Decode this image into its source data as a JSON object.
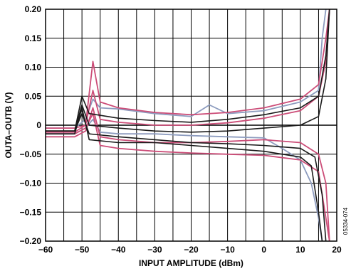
{
  "chart_data": {
    "type": "line",
    "xlabel": "INPUT AMPLITUDE (dBm)",
    "ylabel": "OUTA–OUTB (V)",
    "xlim": [
      -60,
      20
    ],
    "ylim": [
      -0.2,
      0.2
    ],
    "x_ticks": [
      "−60",
      "−50",
      "−40",
      "−30",
      "−20",
      "−10",
      "0",
      "10",
      "20"
    ],
    "y_ticks": [
      "0.20",
      "0.15",
      "0.10",
      "0.05",
      "0",
      "−0.05",
      "−0.10",
      "−0.15",
      "−0.20"
    ],
    "grid": true,
    "figure_id": "05334-074",
    "colors": {
      "black": "#1a1a1a",
      "pink": "#cc4d78",
      "blue": "#8d9cbf"
    },
    "series": [
      {
        "color": "black",
        "points": [
          [
            -60,
            -0.01
          ],
          [
            -52,
            -0.01
          ],
          [
            -50,
            0.05
          ],
          [
            -48,
            0.02
          ],
          [
            -40,
            0.012
          ],
          [
            -30,
            0.008
          ],
          [
            -20,
            0.005
          ],
          [
            -10,
            0.01
          ],
          [
            0,
            0.018
          ],
          [
            10,
            0.03
          ],
          [
            15,
            0.05
          ],
          [
            17,
            0.12
          ],
          [
            18,
            0.2
          ]
        ]
      },
      {
        "color": "black",
        "points": [
          [
            -60,
            -0.01
          ],
          [
            -52,
            -0.01
          ],
          [
            -50,
            0.035
          ],
          [
            -48,
            0.0
          ],
          [
            -40,
            -0.005
          ],
          [
            -30,
            -0.01
          ],
          [
            -20,
            -0.012
          ],
          [
            -10,
            -0.01
          ],
          [
            0,
            -0.005
          ],
          [
            10,
            0.0
          ],
          [
            15,
            0.015
          ],
          [
            17,
            0.08
          ],
          [
            18,
            0.2
          ]
        ]
      },
      {
        "color": "black",
        "points": [
          [
            -60,
            -0.01
          ],
          [
            -52,
            -0.01
          ],
          [
            -50,
            0.02
          ],
          [
            -48,
            -0.015
          ],
          [
            -40,
            -0.02
          ],
          [
            -30,
            -0.025
          ],
          [
            -20,
            -0.03
          ],
          [
            -10,
            -0.032
          ],
          [
            0,
            -0.035
          ],
          [
            10,
            -0.04
          ],
          [
            14,
            -0.055
          ],
          [
            16,
            -0.12
          ],
          [
            17,
            -0.2
          ]
        ]
      },
      {
        "color": "black",
        "points": [
          [
            -60,
            -0.015
          ],
          [
            -52,
            -0.015
          ],
          [
            -50,
            0.03
          ],
          [
            -48,
            -0.025
          ],
          [
            -40,
            -0.03
          ],
          [
            -30,
            -0.03
          ],
          [
            -20,
            -0.035
          ],
          [
            -10,
            -0.04
          ],
          [
            0,
            -0.045
          ],
          [
            10,
            -0.055
          ],
          [
            13,
            -0.07
          ],
          [
            15,
            -0.15
          ],
          [
            16,
            -0.2
          ]
        ]
      },
      {
        "color": "pink",
        "points": [
          [
            -60,
            -0.005
          ],
          [
            -52,
            -0.005
          ],
          [
            -49,
            0.0
          ],
          [
            -47,
            0.11
          ],
          [
            -45,
            0.04
          ],
          [
            -40,
            0.03
          ],
          [
            -30,
            0.022
          ],
          [
            -20,
            0.018
          ],
          [
            -10,
            0.022
          ],
          [
            0,
            0.03
          ],
          [
            10,
            0.045
          ],
          [
            15,
            0.07
          ],
          [
            17,
            0.15
          ],
          [
            18,
            0.2
          ]
        ]
      },
      {
        "color": "pink",
        "points": [
          [
            -60,
            -0.012
          ],
          [
            -52,
            -0.012
          ],
          [
            -49,
            0.0
          ],
          [
            -47,
            0.06
          ],
          [
            -45,
            0.01
          ],
          [
            -40,
            0.005
          ],
          [
            -30,
            0.0
          ],
          [
            -20,
            0.0
          ],
          [
            -10,
            0.004
          ],
          [
            0,
            0.012
          ],
          [
            10,
            0.025
          ],
          [
            15,
            0.05
          ],
          [
            17,
            0.11
          ],
          [
            18,
            0.2
          ]
        ]
      },
      {
        "color": "pink",
        "points": [
          [
            -60,
            -0.02
          ],
          [
            -52,
            -0.02
          ],
          [
            -49,
            -0.01
          ],
          [
            -47,
            0.03
          ],
          [
            -45,
            -0.02
          ],
          [
            -40,
            -0.025
          ],
          [
            -30,
            -0.03
          ],
          [
            -20,
            -0.03
          ],
          [
            -10,
            -0.028
          ],
          [
            0,
            -0.025
          ],
          [
            10,
            -0.03
          ],
          [
            15,
            -0.05
          ],
          [
            17,
            -0.1
          ],
          [
            18,
            -0.2
          ]
        ]
      },
      {
        "color": "pink",
        "points": [
          [
            -60,
            -0.015
          ],
          [
            -52,
            -0.015
          ],
          [
            -49,
            -0.005
          ],
          [
            -47,
            0.02
          ],
          [
            -45,
            -0.035
          ],
          [
            -40,
            -0.04
          ],
          [
            -30,
            -0.045
          ],
          [
            -20,
            -0.048
          ],
          [
            -10,
            -0.05
          ],
          [
            0,
            -0.052
          ],
          [
            10,
            -0.06
          ],
          [
            15,
            -0.08
          ],
          [
            17,
            -0.16
          ],
          [
            18,
            -0.2
          ]
        ]
      },
      {
        "color": "blue",
        "points": [
          [
            -60,
            -0.005
          ],
          [
            -52,
            -0.005
          ],
          [
            -49,
            0.01
          ],
          [
            -47,
            0.045
          ],
          [
            -45,
            0.03
          ],
          [
            -40,
            0.028
          ],
          [
            -30,
            0.02
          ],
          [
            -20,
            0.015
          ],
          [
            -15,
            0.035
          ],
          [
            -10,
            0.02
          ],
          [
            0,
            0.025
          ],
          [
            10,
            0.04
          ],
          [
            15,
            0.06
          ],
          [
            16,
            0.15
          ],
          [
            17,
            0.2
          ]
        ]
      },
      {
        "color": "blue",
        "points": [
          [
            -60,
            -0.015
          ],
          [
            -52,
            -0.015
          ],
          [
            -49,
            -0.005
          ],
          [
            -47,
            0.01
          ],
          [
            -45,
            -0.012
          ],
          [
            -40,
            -0.015
          ],
          [
            -30,
            -0.015
          ],
          [
            -20,
            -0.018
          ],
          [
            -10,
            -0.02
          ],
          [
            0,
            -0.022
          ],
          [
            5,
            -0.04
          ],
          [
            10,
            -0.06
          ],
          [
            13,
            -0.1
          ],
          [
            15,
            -0.16
          ],
          [
            16,
            -0.2
          ]
        ]
      }
    ]
  }
}
